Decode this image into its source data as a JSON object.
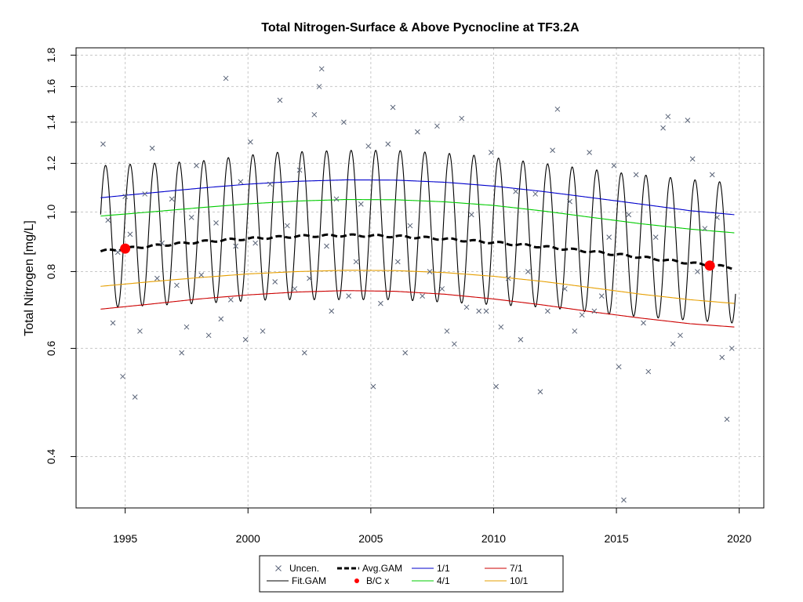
{
  "chart_data": {
    "type": "scatter",
    "title": "Total Nitrogen-Surface & Above Pycnocline at TF3.2A",
    "xlabel": "",
    "ylabel": "Total Nitrogen [mg/L]",
    "xlim": [
      1993.0,
      2021.0
    ],
    "ylim": [
      0.33,
      1.85
    ],
    "y_scale": "log",
    "x_ticks": [
      1995,
      2000,
      2005,
      2010,
      2015,
      2020
    ],
    "x_tick_labels": [
      "1995",
      "2000",
      "2005",
      "2010",
      "2015",
      "2020"
    ],
    "y_ticks": [
      0.4,
      0.6,
      0.8,
      1.0,
      1.2,
      1.4,
      1.6,
      1.8
    ],
    "y_tick_labels": [
      "0.4",
      "0.6",
      "0.8",
      "1.0",
      "1.2",
      "1.4",
      "1.6",
      "1.8"
    ],
    "grid": true,
    "legend_position": "bottom",
    "colors": {
      "uncen": "#5a6478",
      "fit": "#000000",
      "avg": "#000000",
      "bc": "#ff0000",
      "p1_1": "#0000cc",
      "p4_1": "#00cc00",
      "p7_1": "#cc0000",
      "p10_1": "#e69f00",
      "grid": "#c8c8c8"
    },
    "legend": [
      {
        "key": "uncen",
        "label": "Uncen.",
        "symbol": "x"
      },
      {
        "key": "avg",
        "label": "Avg.GAM",
        "symbol": "dash"
      },
      {
        "key": "p1_1",
        "label": "1/1",
        "symbol": "line"
      },
      {
        "key": "p7_1",
        "label": "7/1",
        "symbol": "line"
      },
      {
        "key": "fit",
        "label": "Fit.GAM",
        "symbol": "line"
      },
      {
        "key": "bc",
        "label": "B/C x",
        "symbol": "dot"
      },
      {
        "key": "p4_1",
        "label": "4/1",
        "symbol": "line"
      },
      {
        "key": "p10_1",
        "label": "10/1",
        "symbol": "line"
      }
    ],
    "fit_gam": {
      "x_start": 1994.0,
      "x_end": 2019.85,
      "peak_phase": 0.2,
      "trough_phase": 0.7,
      "peak_years": [
        1994,
        1998,
        2001,
        2004,
        2006,
        2009,
        2012,
        2015,
        2019
      ],
      "peak_values": [
        1.19,
        1.21,
        1.25,
        1.26,
        1.26,
        1.24,
        1.2,
        1.16,
        1.12
      ],
      "trough_years": [
        1994.5,
        1998,
        2001,
        2004,
        2006,
        2009,
        2012,
        2015,
        2019.5
      ],
      "trough_values": [
        0.7,
        0.71,
        0.72,
        0.72,
        0.72,
        0.71,
        0.7,
        0.68,
        0.66
      ]
    },
    "series": [
      {
        "key": "avg",
        "x": [
          1994.0,
          1995.0,
          1996.0,
          1997.0,
          1998.0,
          1999.0,
          2000.0,
          2001.0,
          2002.0,
          2003.0,
          2004.0,
          2005.0,
          2006.0,
          2007.0,
          2008.0,
          2009.0,
          2010.0,
          2011.0,
          2012.0,
          2013.0,
          2014.0,
          2015.0,
          2016.0,
          2017.0,
          2018.0,
          2019.0,
          2019.7
        ],
        "y": [
          0.863,
          0.872,
          0.88,
          0.887,
          0.894,
          0.9,
          0.905,
          0.909,
          0.913,
          0.915,
          0.916,
          0.915,
          0.913,
          0.909,
          0.904,
          0.898,
          0.892,
          0.885,
          0.878,
          0.87,
          0.862,
          0.853,
          0.844,
          0.835,
          0.826,
          0.818,
          0.812
        ]
      },
      {
        "key": "p1_1",
        "x": [
          1994.0,
          1996.0,
          1998.0,
          2000.0,
          2002.0,
          2004.0,
          2006.0,
          2008.0,
          2010.0,
          2012.0,
          2014.0,
          2016.0,
          2018.0,
          2019.8
        ],
        "y": [
          1.055,
          1.074,
          1.093,
          1.11,
          1.122,
          1.128,
          1.127,
          1.118,
          1.102,
          1.08,
          1.055,
          1.03,
          1.005,
          0.99
        ]
      },
      {
        "key": "p4_1",
        "x": [
          1994.0,
          1996.0,
          1998.0,
          2000.0,
          2002.0,
          2004.0,
          2006.0,
          2008.0,
          2010.0,
          2012.0,
          2014.0,
          2016.0,
          2018.0,
          2019.8
        ],
        "y": [
          0.985,
          1.0,
          1.016,
          1.031,
          1.042,
          1.048,
          1.047,
          1.039,
          1.025,
          1.004,
          0.98,
          0.957,
          0.938,
          0.925
        ]
      },
      {
        "key": "p10_1",
        "x": [
          1994.0,
          1996.0,
          1998.0,
          2000.0,
          2002.0,
          2004.0,
          2006.0,
          2008.0,
          2010.0,
          2012.0,
          2014.0,
          2016.0,
          2018.0,
          2019.8
        ],
        "y": [
          0.757,
          0.77,
          0.782,
          0.793,
          0.8,
          0.804,
          0.803,
          0.797,
          0.786,
          0.771,
          0.753,
          0.735,
          0.72,
          0.71
        ]
      },
      {
        "key": "p7_1",
        "x": [
          1994.0,
          1996.0,
          1998.0,
          2000.0,
          2002.0,
          2004.0,
          2006.0,
          2008.0,
          2010.0,
          2012.0,
          2014.0,
          2016.0,
          2018.0,
          2019.8
        ],
        "y": [
          0.695,
          0.708,
          0.722,
          0.733,
          0.741,
          0.745,
          0.743,
          0.735,
          0.722,
          0.706,
          0.688,
          0.672,
          0.658,
          0.65
        ]
      }
    ],
    "bc_points": {
      "x": [
        1995.0,
        2018.8
      ],
      "y": [
        0.872,
        0.818
      ]
    },
    "uncen_points": {
      "x": [
        1994.1,
        1994.3,
        1994.5,
        1994.7,
        1994.9,
        1995.0,
        1995.2,
        1995.4,
        1995.6,
        1995.8,
        1996.1,
        1996.3,
        1996.5,
        1996.9,
        1997.1,
        1997.3,
        1997.5,
        1997.7,
        1997.9,
        1998.1,
        1998.4,
        1998.7,
        1998.9,
        1999.1,
        1999.3,
        1999.5,
        1999.7,
        1999.9,
        2000.1,
        2000.3,
        2000.6,
        2000.9,
        2001.1,
        2001.3,
        2001.6,
        2001.9,
        2002.1,
        2002.3,
        2002.5,
        2002.7,
        2002.9,
        2003.0,
        2003.2,
        2003.4,
        2003.6,
        2003.9,
        2004.1,
        2004.4,
        2004.6,
        2004.9,
        2005.1,
        2005.4,
        2005.7,
        2005.9,
        2006.1,
        2006.4,
        2006.6,
        2006.9,
        2007.1,
        2007.4,
        2007.7,
        2007.9,
        2008.1,
        2008.4,
        2008.7,
        2008.9,
        2009.1,
        2009.4,
        2009.7,
        2009.9,
        2010.1,
        2010.3,
        2010.6,
        2010.9,
        2011.1,
        2011.4,
        2011.7,
        2011.9,
        2012.2,
        2012.4,
        2012.6,
        2012.9,
        2013.1,
        2013.3,
        2013.6,
        2013.9,
        2014.1,
        2014.4,
        2014.7,
        2014.9,
        2015.1,
        2015.3,
        2015.5,
        2015.8,
        2016.1,
        2016.3,
        2016.6,
        2016.9,
        2017.1,
        2017.3,
        2017.6,
        2017.9,
        2018.1,
        2018.3,
        2018.6,
        2018.9,
        2019.1,
        2019.3,
        2019.5,
        2019.7
      ],
      "y": [
        1.29,
        0.97,
        0.66,
        0.86,
        0.54,
        1.06,
        0.92,
        0.5,
        0.64,
        1.07,
        1.27,
        0.78,
        0.89,
        1.05,
        0.76,
        0.59,
        0.65,
        0.98,
        1.19,
        0.79,
        0.63,
        0.96,
        0.67,
        1.65,
        0.72,
        0.88,
        1.12,
        0.62,
        1.3,
        0.89,
        0.64,
        1.11,
        0.77,
        1.52,
        0.95,
        0.75,
        1.17,
        0.59,
        0.78,
        1.44,
        1.6,
        1.71,
        0.88,
        0.69,
        1.05,
        1.4,
        0.73,
        0.83,
        1.03,
        1.28,
        0.52,
        0.71,
        1.29,
        1.48,
        0.83,
        0.59,
        0.95,
        1.35,
        0.73,
        0.8,
        1.38,
        0.75,
        0.64,
        0.61,
        1.42,
        0.7,
        0.99,
        0.69,
        0.69,
        1.25,
        0.52,
        0.65,
        0.78,
        1.08,
        0.62,
        0.8,
        1.07,
        0.51,
        0.69,
        1.26,
        1.47,
        0.75,
        1.04,
        0.64,
        0.68,
        1.25,
        0.69,
        0.73,
        0.91,
        1.19,
        0.56,
        0.34,
        0.99,
        1.15,
        0.66,
        0.55,
        0.91,
        1.37,
        1.43,
        0.61,
        0.63,
        1.41,
        1.22,
        0.8,
        0.94,
        1.15,
        0.98,
        0.58,
        0.46,
        0.6
      ]
    }
  }
}
